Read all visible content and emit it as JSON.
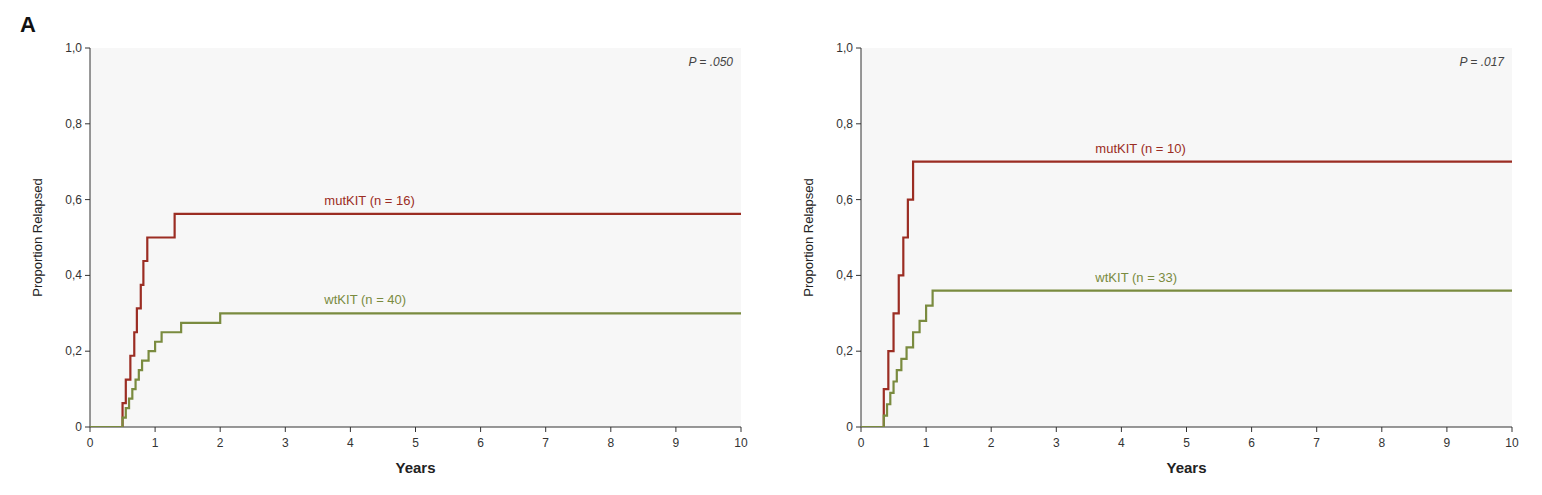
{
  "chart_data": [
    {
      "type": "step",
      "title": "A",
      "xlabel": "Years",
      "ylabel": "Proportion Relapsed",
      "annotations": [
        {
          "text": "P = .050"
        }
      ],
      "xlim": [
        0,
        10
      ],
      "ylim": [
        0,
        1.0
      ],
      "xticks": [
        0,
        1,
        2,
        3,
        4,
        5,
        6,
        7,
        8,
        9,
        10
      ],
      "yticks": [
        0,
        {
          "value": 0.2,
          "label": "0,2"
        },
        {
          "value": 0.4,
          "label": "0,4"
        },
        {
          "value": 0.6,
          "label": "0,6"
        },
        {
          "value": 0.8,
          "label": "0,8"
        },
        {
          "value": 1.0,
          "label": "1,0"
        }
      ],
      "series": [
        {
          "name": "mutKIT (n = 16)",
          "color": "#9b2d23",
          "x": [
            0,
            0.45,
            0.5,
            0.55,
            0.62,
            0.68,
            0.72,
            0.78,
            0.82,
            0.88,
            0.92,
            0.97,
            1.05,
            1.15,
            1.3,
            1.5,
            10.0
          ],
          "values": [
            0.0,
            0.0,
            0.063,
            0.125,
            0.188,
            0.25,
            0.313,
            0.375,
            0.438,
            0.5,
            0.5,
            0.5,
            0.5,
            0.5,
            0.5625,
            0.5625,
            0.5625
          ]
        },
        {
          "name": "wtKIT (n = 40)",
          "color": "#7a8b3f",
          "x": [
            0,
            0.45,
            0.5,
            0.55,
            0.6,
            0.65,
            0.7,
            0.75,
            0.8,
            0.9,
            1.0,
            1.1,
            1.2,
            1.4,
            1.6,
            1.8,
            2.0,
            2.2,
            10.0
          ],
          "values": [
            0.0,
            0.0,
            0.025,
            0.05,
            0.075,
            0.1,
            0.125,
            0.15,
            0.175,
            0.2,
            0.225,
            0.25,
            0.25,
            0.275,
            0.275,
            0.275,
            0.3,
            0.3,
            0.3
          ]
        }
      ]
    },
    {
      "type": "step",
      "xlabel": "Years",
      "ylabel": "Proportion Relapsed",
      "annotations": [
        {
          "text": "P = .017"
        }
      ],
      "xlim": [
        0,
        10
      ],
      "ylim": [
        0,
        1.0
      ],
      "xticks": [
        0,
        1,
        2,
        3,
        4,
        5,
        6,
        7,
        8,
        9,
        10
      ],
      "yticks": [
        0,
        {
          "value": 0.2,
          "label": "0,2"
        },
        {
          "value": 0.4,
          "label": "0,4"
        },
        {
          "value": 0.6,
          "label": "0,6"
        },
        {
          "value": 0.8,
          "label": "0,8"
        },
        {
          "value": 1.0,
          "label": "1,0"
        }
      ],
      "series": [
        {
          "name": "mutKIT (n = 10)",
          "color": "#9b2d23",
          "x": [
            0,
            0.3,
            0.35,
            0.42,
            0.5,
            0.58,
            0.65,
            0.72,
            0.8,
            0.88,
            1.0,
            1.1,
            10.0
          ],
          "values": [
            0.0,
            0.0,
            0.1,
            0.2,
            0.3,
            0.4,
            0.5,
            0.6,
            0.7,
            0.7,
            0.7,
            0.7,
            0.7
          ]
        },
        {
          "name": "wtKIT (n = 33)",
          "color": "#7a8b3f",
          "x": [
            0,
            0.3,
            0.35,
            0.4,
            0.45,
            0.5,
            0.55,
            0.62,
            0.7,
            0.8,
            0.9,
            1.0,
            1.1,
            1.2,
            1.5,
            1.8,
            10.0
          ],
          "values": [
            0.0,
            0.0,
            0.03,
            0.06,
            0.09,
            0.12,
            0.15,
            0.18,
            0.21,
            0.25,
            0.28,
            0.32,
            0.36,
            0.36,
            0.36,
            0.36,
            0.36
          ]
        }
      ]
    }
  ]
}
